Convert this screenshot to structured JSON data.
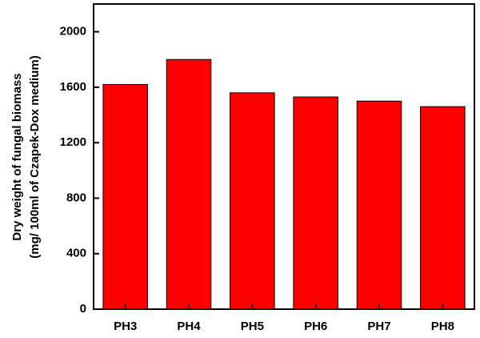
{
  "chart_data": {
    "type": "bar",
    "y_label": [
      "Dry weight of fungal biomass",
      "(mg/ 100ml of Czapek-Dox medium)"
    ],
    "categories": [
      "PH3",
      "PH4",
      "PH5",
      "PH6",
      "PH7",
      "PH8"
    ],
    "values": [
      1620,
      1800,
      1560,
      1530,
      1500,
      1460
    ],
    "color": "#ff0000",
    "ylim": [
      0,
      2200
    ],
    "yticks": [
      0,
      400,
      800,
      1200,
      1600,
      2000
    ],
    "grid": false
  }
}
